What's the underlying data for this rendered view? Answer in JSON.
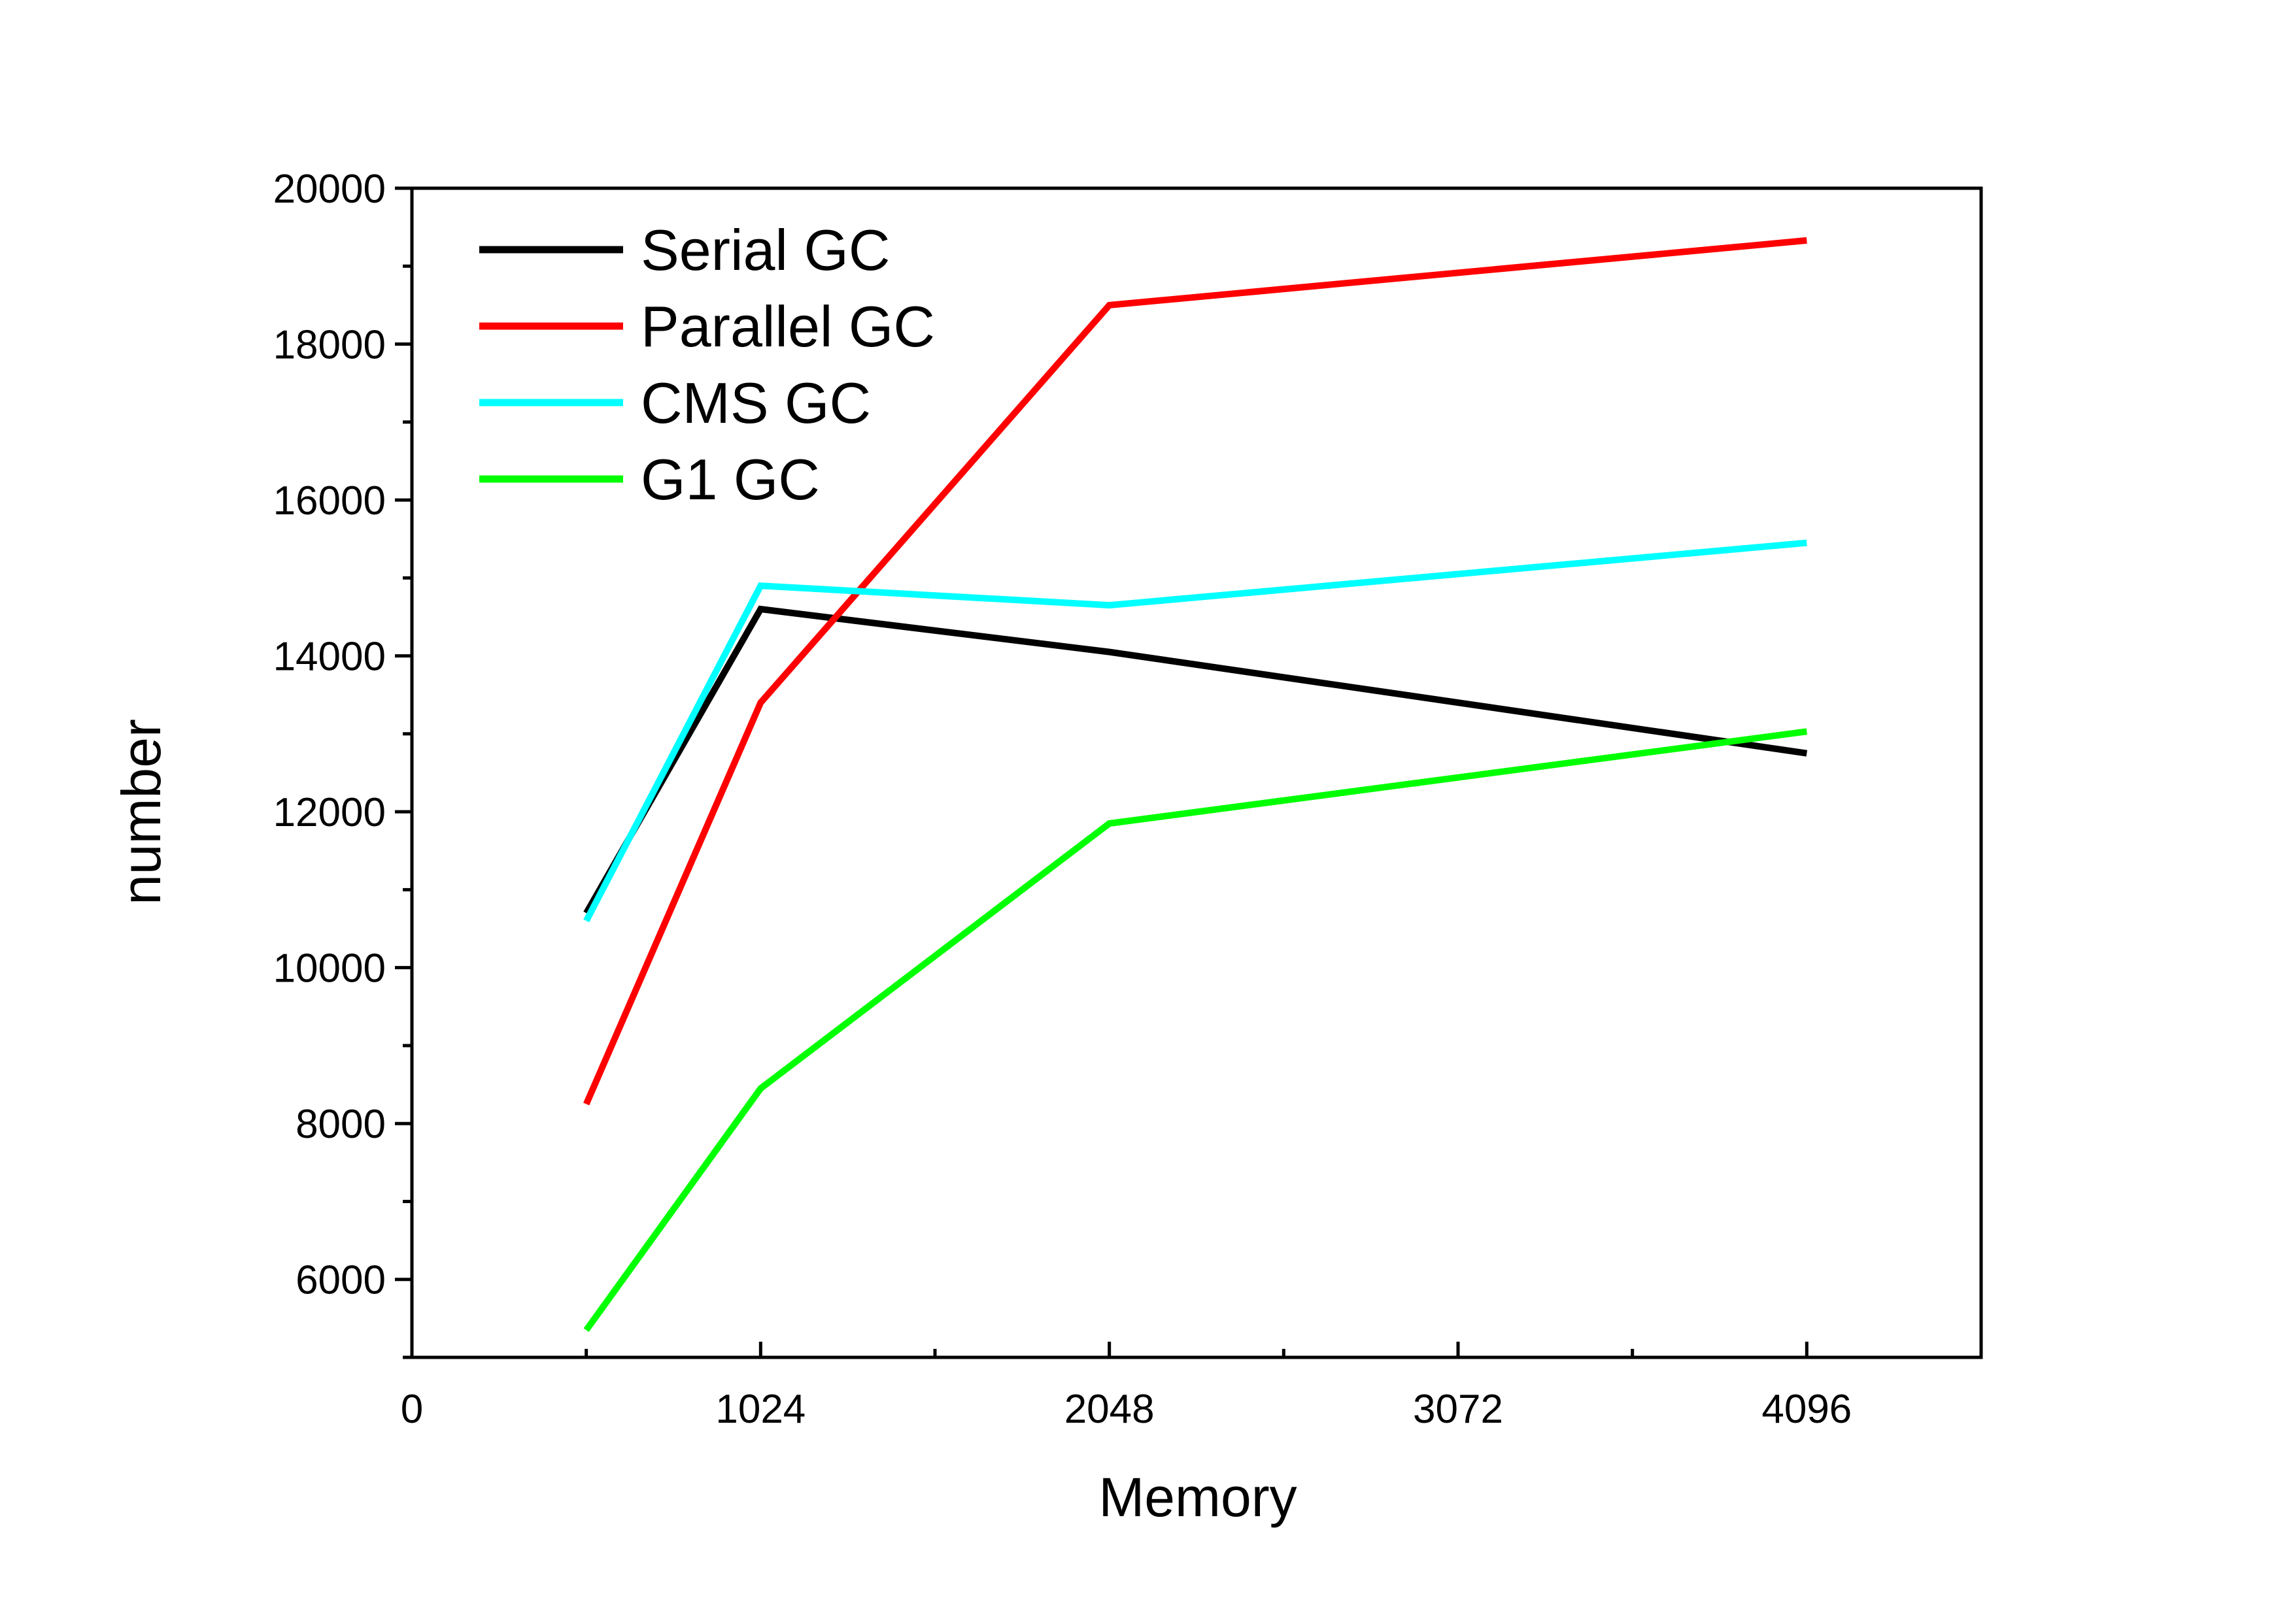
{
  "chart_data": {
    "type": "line",
    "title": "",
    "xlabel": "Memory",
    "ylabel": "number",
    "xlim": [
      0,
      4608
    ],
    "ylim": [
      5000,
      20000
    ],
    "x_ticks": [
      0,
      1024,
      2048,
      3072,
      4096
    ],
    "x_minor_ticks": [
      512,
      1536,
      2560,
      3584
    ],
    "y_ticks": [
      6000,
      8000,
      10000,
      12000,
      14000,
      16000,
      18000,
      20000
    ],
    "y_minor_ticks": [
      5000,
      7000,
      9000,
      11000,
      13000,
      15000,
      17000,
      19000
    ],
    "grid": false,
    "legend_position": "top-left",
    "x": [
      512,
      1024,
      2048,
      4096
    ],
    "series": [
      {
        "name": "Serial GC",
        "color": "#000000",
        "values": [
          10700,
          14600,
          14050,
          12750
        ]
      },
      {
        "name": "Parallel GC",
        "color": "#ff0000",
        "values": [
          8250,
          13400,
          18500,
          19330
        ]
      },
      {
        "name": "CMS GC",
        "color": "#00ffff",
        "values": [
          10600,
          14900,
          14650,
          15450
        ]
      },
      {
        "name": "G1 GC",
        "color": "#00ff00",
        "values": [
          5350,
          8450,
          11850,
          13030
        ]
      }
    ]
  }
}
